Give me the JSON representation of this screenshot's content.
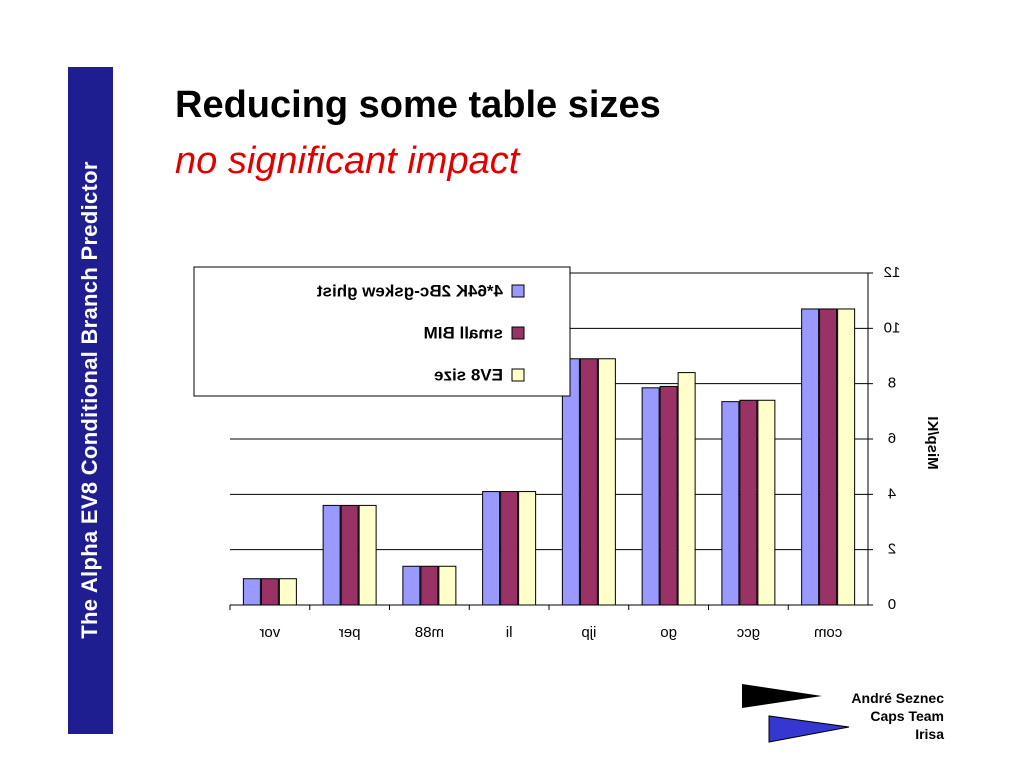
{
  "sidebar": {
    "title": "The  Alpha EV8 Conditional Branch Predictor"
  },
  "slide": {
    "title": "Reducing some table sizes",
    "subtitle": "no significant impact"
  },
  "footer": {
    "author": "André Seznec",
    "team": "Caps Team",
    "institution": "Irisa"
  },
  "colors": {
    "sidebar": "#1e1e90",
    "title": "#000000",
    "subtitle": "#e00000",
    "arrow_dark": "#000000",
    "arrow_light": "#3636d0"
  },
  "chart_data": {
    "type": "bar",
    "mirrored": true,
    "ylabel": "Misp/KI",
    "ylim": [
      0,
      12
    ],
    "yticks": [
      0,
      2,
      4,
      6,
      8,
      10,
      12
    ],
    "grid": true,
    "legend_position": "top-left",
    "categories": [
      "com",
      "gcc",
      "go",
      "ijp",
      "li",
      "m88",
      "per",
      "vor"
    ],
    "series": [
      {
        "name": "EV8 size",
        "color": "#ffffcc",
        "values": [
          10.7,
          7.4,
          8.4,
          8.9,
          4.1,
          1.4,
          3.6,
          0.95
        ]
      },
      {
        "name": "small BIM",
        "color": "#993366",
        "values": [
          10.7,
          7.4,
          7.9,
          8.9,
          4.1,
          1.4,
          3.6,
          0.95
        ]
      },
      {
        "name": "4*64K 2Bc-gskew ghist",
        "color": "#9999ff",
        "values": [
          10.7,
          7.35,
          7.85,
          8.9,
          4.1,
          1.4,
          3.6,
          0.95
        ]
      }
    ]
  }
}
